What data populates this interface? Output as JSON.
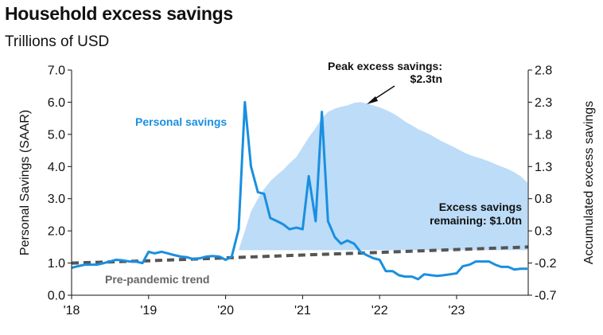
{
  "chart_data": {
    "type": "line",
    "title": "Household excess savings",
    "subtitle": "Trillions of USD",
    "ylabel_left": "Personal Savings (SAAR)",
    "ylabel_right": "Accumulated  excess savings",
    "ylim_left": [
      0.0,
      7.0
    ],
    "ylim_right": [
      -0.7,
      2.8
    ],
    "yticks_left": [
      "0.0",
      "1.0",
      "2.0",
      "3.0",
      "4.0",
      "5.0",
      "6.0",
      "7.0"
    ],
    "yticks_right": [
      "-0.7",
      "-0.2",
      "0.3",
      "0.8",
      "1.3",
      "1.8",
      "2.3",
      "2.8"
    ],
    "xticks": [
      {
        "label": "'18",
        "t": 2018.0
      },
      {
        "label": "'19",
        "t": 2019.0
      },
      {
        "label": "'20",
        "t": 2020.0
      },
      {
        "label": "'21",
        "t": 2021.0
      },
      {
        "label": "'22",
        "t": 2022.0
      },
      {
        "label": "'23",
        "t": 2023.0
      }
    ],
    "xlim": [
      2018.0,
      2023.93
    ],
    "series": [
      {
        "name": "Personal savings",
        "axis": "left",
        "color": "#1a8fe0",
        "t": [
          2018.0,
          2018.08,
          2018.17,
          2018.25,
          2018.33,
          2018.42,
          2018.5,
          2018.58,
          2018.67,
          2018.75,
          2018.83,
          2018.92,
          2019.0,
          2019.08,
          2019.17,
          2019.25,
          2019.33,
          2019.42,
          2019.5,
          2019.58,
          2019.67,
          2019.75,
          2019.83,
          2019.92,
          2020.0,
          2020.08,
          2020.17,
          2020.25,
          2020.33,
          2020.42,
          2020.5,
          2020.58,
          2020.67,
          2020.75,
          2020.83,
          2020.92,
          2021.0,
          2021.08,
          2021.17,
          2021.25,
          2021.33,
          2021.42,
          2021.5,
          2021.58,
          2021.67,
          2021.75,
          2021.83,
          2021.92,
          2022.0,
          2022.08,
          2022.17,
          2022.25,
          2022.33,
          2022.42,
          2022.5,
          2022.58,
          2022.67,
          2022.75,
          2022.83,
          2022.92,
          2023.0,
          2023.08,
          2023.17,
          2023.25,
          2023.33,
          2023.42,
          2023.5,
          2023.58,
          2023.67,
          2023.75,
          2023.83,
          2023.92
        ],
        "values": [
          0.85,
          0.9,
          0.95,
          0.95,
          0.95,
          1.0,
          1.05,
          1.1,
          1.08,
          1.05,
          1.05,
          1.0,
          1.35,
          1.3,
          1.35,
          1.3,
          1.25,
          1.2,
          1.18,
          1.12,
          1.15,
          1.2,
          1.22,
          1.2,
          1.1,
          1.2,
          2.05,
          6.0,
          4.0,
          3.2,
          3.15,
          2.4,
          2.3,
          2.2,
          2.05,
          2.1,
          2.05,
          3.7,
          2.3,
          5.7,
          2.3,
          1.8,
          1.6,
          1.7,
          1.6,
          1.35,
          1.25,
          1.15,
          1.1,
          0.75,
          0.75,
          0.62,
          0.58,
          0.58,
          0.5,
          0.65,
          0.62,
          0.6,
          0.62,
          0.65,
          0.68,
          0.9,
          0.95,
          1.05,
          1.05,
          1.05,
          0.95,
          0.88,
          0.88,
          0.8,
          0.82,
          0.82
        ]
      },
      {
        "name": "Pre-pandemic trend",
        "axis": "left",
        "color": "#555555",
        "t": [
          2018.0,
          2019.0,
          2020.0,
          2021.0,
          2022.0,
          2023.0,
          2023.93
        ],
        "values": [
          1.0,
          1.07,
          1.16,
          1.25,
          1.33,
          1.42,
          1.5
        ]
      },
      {
        "name": "Accumulated excess savings",
        "axis": "right",
        "type": "area",
        "color": "#bcdcf8",
        "t": [
          2020.17,
          2020.25,
          2020.33,
          2020.42,
          2020.5,
          2020.58,
          2020.67,
          2020.75,
          2020.83,
          2020.92,
          2021.0,
          2021.08,
          2021.17,
          2021.25,
          2021.33,
          2021.42,
          2021.5,
          2021.58,
          2021.67,
          2021.75,
          2021.83,
          2021.92,
          2022.0,
          2022.08,
          2022.17,
          2022.25,
          2022.33,
          2022.42,
          2022.5,
          2022.58,
          2022.67,
          2022.75,
          2022.83,
          2022.92,
          2023.0,
          2023.08,
          2023.17,
          2023.25,
          2023.33,
          2023.42,
          2023.5,
          2023.58,
          2023.67,
          2023.75,
          2023.83,
          2023.92
        ],
        "values": [
          0.0,
          0.3,
          0.6,
          0.8,
          0.95,
          1.07,
          1.17,
          1.25,
          1.35,
          1.45,
          1.6,
          1.75,
          1.9,
          2.05,
          2.15,
          2.2,
          2.23,
          2.25,
          2.29,
          2.3,
          2.28,
          2.25,
          2.22,
          2.18,
          2.13,
          2.07,
          2.0,
          1.94,
          1.88,
          1.84,
          1.79,
          1.73,
          1.68,
          1.63,
          1.58,
          1.53,
          1.48,
          1.45,
          1.42,
          1.38,
          1.34,
          1.3,
          1.26,
          1.21,
          1.15,
          1.05
        ]
      }
    ],
    "annotations": {
      "personal_savings_label": "Personal savings",
      "pre_pandemic_label": "Pre-pandemic trend",
      "peak_line1": "Peak excess savings:",
      "peak_line2": "$2.3tn",
      "remaining_line1": "Excess savings",
      "remaining_line2": "remaining: $1.0tn"
    }
  }
}
